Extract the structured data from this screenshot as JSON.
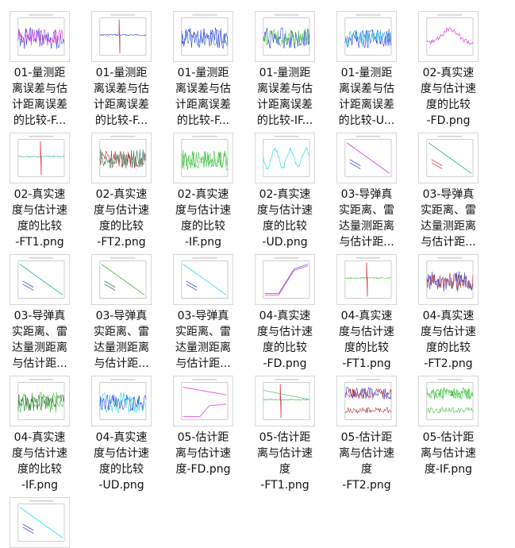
{
  "files": [
    {
      "lines": [
        "01-量测距",
        "离误差与估",
        "计距离误差",
        "的比较-F..."
      ],
      "chart": "noise",
      "colors": [
        "#2a3bd9",
        "#e23bd6"
      ]
    },
    {
      "lines": [
        "01-量测距",
        "离误差与估",
        "计距离误差",
        "的比较-F..."
      ],
      "chart": "spike",
      "colors": [
        "#2a3bd9",
        "#d42a2a"
      ]
    },
    {
      "lines": [
        "01-量测距",
        "离误差与估",
        "计距离误差",
        "的比较-F..."
      ],
      "chart": "noise",
      "colors": [
        "#2a3bd9",
        "#3a6ae0"
      ]
    },
    {
      "lines": [
        "01-量测距",
        "离误差与估",
        "计距离误差",
        "的比较-IF..."
      ],
      "chart": "noise",
      "colors": [
        "#2a3bd9",
        "#3fc23f"
      ]
    },
    {
      "lines": [
        "01-量测距",
        "离误差与估",
        "计距离误差",
        "的比较-U..."
      ],
      "chart": "noise",
      "colors": [
        "#2a3bd9",
        "#2ab6d9"
      ]
    },
    {
      "lines": [
        "02-真实速",
        "度与估计速",
        "度的比较",
        "-FD.png"
      ],
      "chart": "hump",
      "colors": [
        "#e23bd6"
      ]
    },
    {
      "lines": [
        "02-真实速",
        "度与估计速",
        "度的比较",
        "-FT1.png"
      ],
      "chart": "spike",
      "colors": [
        "#2ab6a0",
        "#d42a2a"
      ]
    },
    {
      "lines": [
        "02-真实速",
        "度与估计速",
        "度的比较",
        "-FT2.png"
      ],
      "chart": "noise",
      "colors": [
        "#1f7a4f",
        "#b03030"
      ]
    },
    {
      "lines": [
        "02-真实速",
        "度与估计速",
        "度的比较",
        "-IF.png"
      ],
      "chart": "noise",
      "colors": [
        "#3fc23f",
        "#3fc23f"
      ]
    },
    {
      "lines": [
        "02-真实速",
        "度与估计速",
        "度的比较",
        "-UD.png"
      ],
      "chart": "wave",
      "colors": [
        "#2ad9d9"
      ]
    },
    {
      "lines": [
        "03-导弹真",
        "实距离、雷",
        "达量测距离",
        "与估计距..."
      ],
      "chart": "decline",
      "colors": [
        "#e23bd6",
        "#2a3bd9"
      ]
    },
    {
      "lines": [
        "03-导弹真",
        "实距离、雷",
        "达量测距离",
        "与估计距..."
      ],
      "chart": "decline",
      "colors": [
        "#2ab6a0",
        "#d42a2a"
      ]
    },
    {
      "lines": [
        "03-导弹真",
        "实距离、雷",
        "达量测距离",
        "与估计距..."
      ],
      "chart": "decline",
      "colors": [
        "#2ab6a0",
        "#2a3bd9"
      ]
    },
    {
      "lines": [
        "03-导弹真",
        "实距离、雷",
        "达量测距离",
        "与估计距..."
      ],
      "chart": "decline",
      "colors": [
        "#3fc23f",
        "#2a6a4f"
      ]
    },
    {
      "lines": [
        "03-导弹真",
        "实距离、雷",
        "达量测距离",
        "与估计距..."
      ],
      "chart": "decline",
      "colors": [
        "#2ad9d9",
        "#2a3bd9"
      ]
    },
    {
      "lines": [
        "04-真实速",
        "度与估计速",
        "度的比较",
        "-FD.png"
      ],
      "chart": "rise",
      "colors": [
        "#e23bd6",
        "#2a3bd9"
      ]
    },
    {
      "lines": [
        "04-真实速",
        "度与估计速",
        "度的比较",
        "-FT1.png"
      ],
      "chart": "spike",
      "colors": [
        "#3fc23f",
        "#d42a2a"
      ]
    },
    {
      "lines": [
        "04-真实速",
        "度与估计速",
        "度的比较",
        "-FT2.png"
      ],
      "chart": "noise",
      "colors": [
        "#2a3bd9",
        "#b03030"
      ]
    },
    {
      "lines": [
        "04-真实速",
        "度与估计速",
        "度的比较",
        "-IF.png"
      ],
      "chart": "noise",
      "colors": [
        "#3fc23f",
        "#2a6a2a"
      ]
    },
    {
      "lines": [
        "04-真实速",
        "度与估计速",
        "度的比较",
        "-UD.png"
      ],
      "chart": "noise",
      "colors": [
        "#2ad9d9",
        "#2a3bd9"
      ]
    },
    {
      "lines": [
        "05-估计距",
        "离与估计速",
        "度-FD.png"
      ],
      "chart": "twin",
      "colors": [
        "#e23bd6",
        "#e23bd6"
      ]
    },
    {
      "lines": [
        "05-估计距",
        "离与估计速",
        "度",
        "-FT1.png"
      ],
      "chart": "twinspike",
      "colors": [
        "#2ab640",
        "#d42a2a"
      ]
    },
    {
      "lines": [
        "05-估计距",
        "离与估计速",
        "度",
        "-FT2.png"
      ],
      "chart": "twinnoise",
      "colors": [
        "#2a3bd9",
        "#b03030"
      ]
    },
    {
      "lines": [
        "05-估计距",
        "离与估计速",
        "度-IF.png"
      ],
      "chart": "twinnoise",
      "colors": [
        "#3fc23f",
        "#3fc23f"
      ]
    },
    {
      "lines": [],
      "chart": "decline",
      "colors": [
        "#2ad9d9",
        "#2a3bd9"
      ]
    }
  ]
}
